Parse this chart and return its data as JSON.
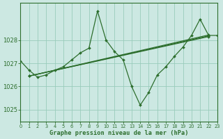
{
  "title": "Graphe pression niveau de la mer (hPa)",
  "bg_color": "#cce8e2",
  "grid_color": "#99ccbb",
  "line_color": "#2d6e2d",
  "xlim": [
    0,
    23
  ],
  "ylim": [
    1024.5,
    1029.6
  ],
  "yticks": [
    1025,
    1026,
    1027,
    1028
  ],
  "xticks": [
    0,
    1,
    2,
    3,
    4,
    5,
    6,
    7,
    8,
    9,
    10,
    11,
    12,
    13,
    14,
    15,
    16,
    17,
    18,
    19,
    20,
    21,
    22,
    23
  ],
  "wavy_line": {
    "x": [
      0,
      1,
      2,
      3,
      4,
      5,
      6,
      7,
      8,
      9,
      10,
      11,
      12,
      13,
      14,
      15,
      16,
      17,
      18,
      19,
      20,
      21,
      22,
      23
    ],
    "y": [
      1027.1,
      1026.7,
      1026.4,
      1026.5,
      1026.7,
      1026.85,
      1027.15,
      1027.45,
      1027.65,
      1029.25,
      1028.0,
      1027.5,
      1027.15,
      1026.0,
      1025.2,
      1025.75,
      1026.5,
      1026.85,
      1027.3,
      1027.7,
      1028.2,
      1028.9,
      1028.2,
      1028.2
    ]
  },
  "trend_lines": [
    {
      "x": [
        1,
        22
      ],
      "y": [
        1026.45,
        1028.22
      ]
    },
    {
      "x": [
        1,
        22
      ],
      "y": [
        1026.45,
        1028.18
      ]
    },
    {
      "x": [
        1,
        22
      ],
      "y": [
        1026.45,
        1028.15
      ]
    }
  ]
}
